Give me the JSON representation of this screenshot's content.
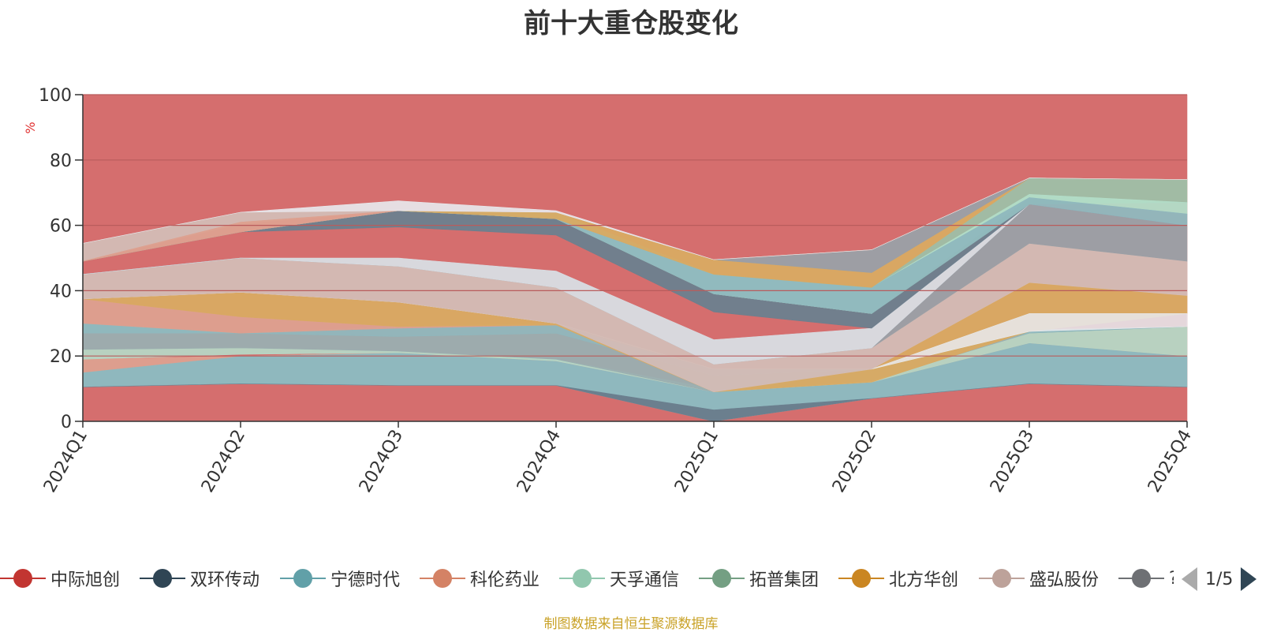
{
  "title": "前十大重仓股变化",
  "source": "制图数据来自恒生聚源数据库",
  "pager": {
    "text": "1/5"
  },
  "icons": {
    "prev": "triangle-left-icon",
    "next": "triangle-right-icon"
  },
  "colors": {
    "background_band": "#d56e6e",
    "axis": "#333333",
    "gridline": "#b95c5c",
    "ylabel": "#e03030",
    "source": "#c9a227"
  },
  "chart_data": {
    "type": "area",
    "stacked": false,
    "x": [
      "2024Q1",
      "2024Q2",
      "2024Q3",
      "2024Q4",
      "2025Q1",
      "2025Q2",
      "2025Q3",
      "2025Q4"
    ],
    "ylabel": "%",
    "ylim": [
      0,
      100
    ],
    "yticks": [
      0,
      20,
      40,
      60,
      80,
      100
    ],
    "grid": true,
    "legend_position": "bottom",
    "legend": [
      {
        "name": "中际旭创",
        "color": "#c23531"
      },
      {
        "name": "双环传动",
        "color": "#2f4554"
      },
      {
        "name": "宁德时代",
        "color": "#61a0a8"
      },
      {
        "name": "科伦药业",
        "color": "#d48265"
      },
      {
        "name": "天孚通信",
        "color": "#91c7ae"
      },
      {
        "name": "拓普集团",
        "color": "#749f83"
      },
      {
        "name": "北方华创",
        "color": "#ca8622"
      },
      {
        "name": "盛弘股份",
        "color": "#bda29a"
      },
      {
        "name": "?",
        "color": "#6e7074"
      }
    ],
    "bands": [
      {
        "color": "#d56e6e",
        "opacity": 1.0,
        "upper": [
          100,
          100,
          100,
          100,
          100,
          100,
          100,
          100
        ],
        "lower": [
          0,
          0,
          0,
          0,
          0,
          0,
          0,
          0
        ]
      },
      {
        "color": "#8fb8be",
        "opacity": 1.0,
        "upper": [
          15,
          20,
          21,
          19,
          9,
          12,
          24,
          20
        ],
        "lower": [
          10.5,
          11.5,
          11,
          11,
          0,
          7,
          11.5,
          10.5
        ]
      },
      {
        "color": "#6b7f8e",
        "opacity": 1.0,
        "upper": [
          10.5,
          11.5,
          11,
          11,
          3.5,
          7,
          11.5,
          10.5
        ],
        "lower": [
          10.5,
          11.5,
          11,
          11,
          0,
          7,
          11.5,
          10.5
        ]
      },
      {
        "color": "#dda08f",
        "opacity": 0.95,
        "upper": [
          19,
          20,
          21,
          18.5,
          9,
          12,
          24,
          20
        ],
        "lower": [
          15,
          20,
          21,
          18.5,
          9,
          12,
          24,
          20
        ]
      },
      {
        "color": "#b6d6c4",
        "opacity": 0.95,
        "upper": [
          22,
          22.5,
          21.5,
          19,
          10,
          12.5,
          28,
          29
        ],
        "lower": [
          19,
          20.5,
          21,
          18.5,
          9,
          12,
          24,
          20
        ]
      },
      {
        "color": "#9aaeb0",
        "opacity": 0.95,
        "upper": [
          30,
          27,
          26,
          27,
          14,
          16,
          27,
          29
        ],
        "lower": [
          22,
          22.5,
          21.5,
          19,
          9,
          12.5,
          27,
          29
        ]
      },
      {
        "color": "#8fb8be",
        "opacity": 0.95,
        "upper": [
          30,
          27,
          29,
          30,
          16,
          16,
          28,
          29
        ],
        "lower": [
          27,
          27,
          26,
          27,
          14,
          16,
          27,
          29
        ]
      },
      {
        "color": "#dda08f",
        "opacity": 0.95,
        "upper": [
          37.5,
          32,
          29,
          30,
          16,
          16,
          28,
          29
        ],
        "lower": [
          30,
          27,
          28.5,
          29.5,
          16,
          16,
          28,
          29
        ]
      },
      {
        "color": "#d9aa62",
        "opacity": 0.95,
        "upper": [
          37.5,
          39.5,
          36.5,
          30,
          9,
          16,
          42.5,
          38.5
        ],
        "lower": [
          37.5,
          32,
          29,
          29.5,
          9,
          12,
          27.5,
          33
        ]
      },
      {
        "color": "#e8eaee",
        "opacity": 0.85,
        "upper": [
          37.5,
          39.5,
          36.5,
          30,
          16,
          16,
          33,
          33
        ],
        "lower": [
          37.5,
          39.5,
          36.5,
          30,
          16,
          16,
          27.5,
          29
        ]
      },
      {
        "color": "#d3bcb5",
        "opacity": 0.95,
        "upper": [
          45,
          50,
          47.5,
          41,
          17.5,
          22.5,
          54.5,
          49
        ],
        "lower": [
          37.5,
          39.5,
          36.5,
          30,
          9,
          16,
          42.5,
          38.5
        ]
      },
      {
        "color": "#9aa0a6",
        "opacity": 0.95,
        "upper": [
          45,
          50,
          47.5,
          41,
          17.5,
          22.5,
          66.5,
          60
        ],
        "lower": [
          45,
          50,
          47.5,
          41,
          17.5,
          22.5,
          54.5,
          49
        ]
      },
      {
        "color": "#d8dde3",
        "opacity": 0.95,
        "upper": [
          45,
          50,
          50,
          46,
          25,
          28.5,
          66.5,
          60
        ],
        "lower": [
          45,
          50,
          47.5,
          41,
          17.5,
          22.5,
          66.5,
          60
        ]
      },
      {
        "color": "#6b7f8e",
        "opacity": 0.95,
        "upper": [
          49,
          58,
          64.5,
          62,
          39,
          33,
          66.5,
          60
        ],
        "lower": [
          49,
          58,
          59.5,
          57,
          33.5,
          28.5,
          66.5,
          60
        ]
      },
      {
        "color": "#9ebfa6",
        "opacity": 0.95,
        "upper": [
          49,
          58,
          64.5,
          64,
          45,
          41,
          74.5,
          74
        ],
        "lower": [
          49,
          58,
          64.5,
          62,
          39,
          33,
          66.5,
          67
        ]
      },
      {
        "color": "#b2dcc7",
        "opacity": 0.95,
        "upper": [
          49,
          58,
          64.5,
          64,
          45,
          41,
          69.5,
          67
        ],
        "lower": [
          49,
          58,
          64.5,
          62,
          39,
          33,
          68.5,
          63.5
        ]
      },
      {
        "color": "#8fb8be",
        "opacity": 0.95,
        "upper": [
          49,
          58,
          64.5,
          64,
          45,
          41,
          68.5,
          63.5
        ],
        "lower": [
          49,
          58,
          64.5,
          62,
          39,
          33,
          66.5,
          60
        ]
      },
      {
        "color": "#d9aa62",
        "opacity": 0.95,
        "upper": [
          49,
          58,
          64.5,
          64,
          49.5,
          45.5,
          74.5,
          74
        ],
        "lower": [
          49,
          58,
          64.5,
          62,
          45,
          41,
          74.5,
          74
        ]
      },
      {
        "color": "#9aa0a6",
        "opacity": 0.95,
        "upper": [
          49,
          58,
          64.5,
          64,
          49.5,
          52.5,
          74.5,
          74
        ],
        "lower": [
          49,
          58,
          64.5,
          64,
          49.5,
          45.5,
          74.5,
          74
        ]
      },
      {
        "color": "#d3bcb5",
        "opacity": 0.95,
        "upper": [
          54.5,
          64,
          64.5,
          64,
          49.5,
          52.5,
          74.5,
          74
        ],
        "lower": [
          49,
          60.5,
          64.5,
          64,
          49.5,
          52.5,
          74.5,
          74
        ]
      },
      {
        "color": "#dda08f",
        "opacity": 0.95,
        "upper": [
          49,
          61,
          64.5,
          64,
          49.5,
          52.5,
          74.5,
          74
        ],
        "lower": [
          49,
          58,
          64.5,
          64,
          49.5,
          52.5,
          74.5,
          74
        ]
      },
      {
        "color": "#e8eaee",
        "opacity": 0.9,
        "upper": [
          54.5,
          64,
          67.5,
          64.5,
          49.5,
          52.5,
          74.5,
          74
        ],
        "lower": [
          54.5,
          64,
          64.5,
          64,
          49.5,
          52.5,
          74.5,
          74
        ]
      }
    ]
  }
}
